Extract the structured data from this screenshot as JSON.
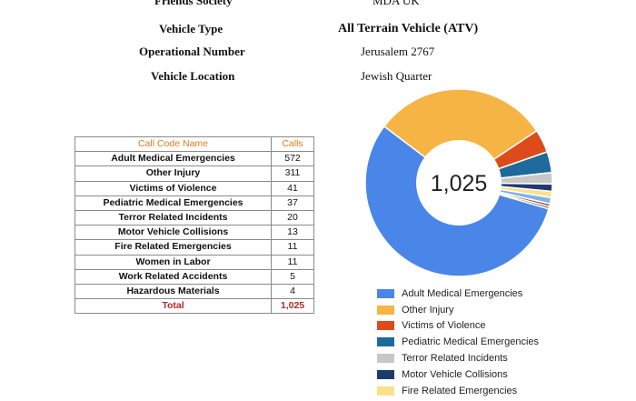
{
  "info": [
    {
      "label": "Friends Society",
      "value": "MDA UK",
      "bold_value": false
    },
    {
      "label": "Vehicle Type",
      "value": "All Terrain Vehicle (ATV)",
      "bold_value": true
    },
    {
      "label": "Operational Number",
      "value": "Jerusalem 2767",
      "bold_value": false
    },
    {
      "label": "Vehicle Location",
      "value": "Jewish Quarter",
      "bold_value": false
    }
  ],
  "table": {
    "headers": {
      "name": "Call Code Name",
      "value": "Calls"
    },
    "rows": [
      {
        "name": "Adult Medical Emergencies",
        "value": "572"
      },
      {
        "name": "Other Injury",
        "value": "311"
      },
      {
        "name": "Victims of Violence",
        "value": "41"
      },
      {
        "name": "Pediatric Medical Emergencies",
        "value": "37"
      },
      {
        "name": "Terror Related Incidents",
        "value": "20"
      },
      {
        "name": "Motor Vehicle Collisions",
        "value": "13"
      },
      {
        "name": "Fire Related Emergencies",
        "value": "11"
      },
      {
        "name": "Women in Labor",
        "value": "11"
      },
      {
        "name": "Work Related Accidents",
        "value": "5"
      },
      {
        "name": "Hazardous Materials",
        "value": "4"
      }
    ],
    "total": {
      "name": "Total",
      "value": "1,025"
    }
  },
  "chart_data": {
    "type": "pie",
    "center_label": "1,025",
    "categories": [
      "Adult Medical Emergencies",
      "Other Injury",
      "Victims of Violence",
      "Pediatric Medical Emergencies",
      "Terror Related Incidents",
      "Motor Vehicle Collisions",
      "Fire Related Emergencies",
      "Women in Labor",
      "Work Related Accidents",
      "Hazardous Materials"
    ],
    "values": [
      572,
      311,
      41,
      37,
      20,
      13,
      11,
      11,
      5,
      4
    ],
    "colors": [
      "#4a86e8",
      "#f6b445",
      "#dd4b1a",
      "#1e6a9a",
      "#c7c7c7",
      "#1f3b6e",
      "#fbe08a",
      "#7fb3e8",
      "#a5442a",
      "#4a5a7a"
    ],
    "legend": [
      "Adult Medical Emergencies",
      "Other Injury",
      "Victims of Violence",
      "Pediatric Medical Emergencies",
      "Terror Related Incidents",
      "Motor Vehicle Collisions",
      "Fire Related Emergencies"
    ],
    "legend_position": "bottom"
  }
}
